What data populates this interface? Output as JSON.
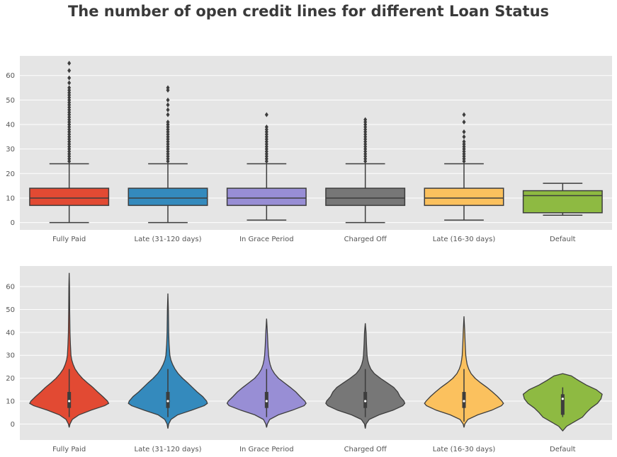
{
  "title": "The number of open credit lines for different Loan Status",
  "colors": {
    "background": "#E5E5E5",
    "grid": "#FFFFFF",
    "line": "#3D3D3D",
    "tick_text": "#555555",
    "palette": [
      "#E24A33",
      "#348ABD",
      "#988ED5",
      "#777777",
      "#FBC15E",
      "#8EBA42"
    ]
  },
  "chart_data": [
    {
      "type": "box",
      "categories": [
        "Fully Paid",
        "Late (31-120 days)",
        "In Grace Period",
        "Charged Off",
        "Late (16-30 days)",
        "Default"
      ],
      "ylim": [
        -3,
        68
      ],
      "yticks": [
        0,
        10,
        20,
        30,
        40,
        50,
        60
      ],
      "grid": true,
      "boxes": [
        {
          "q1": 7,
          "median": 10,
          "q3": 14,
          "whisker_low": 0,
          "whisker_high": 24,
          "outliers": [
            25,
            26,
            27,
            28,
            29,
            30,
            31,
            32,
            33,
            34,
            35,
            36,
            37,
            38,
            39,
            40,
            41,
            42,
            43,
            44,
            45,
            46,
            47,
            48,
            49,
            50,
            51,
            52,
            53,
            54,
            55,
            57,
            59,
            62,
            65
          ]
        },
        {
          "q1": 7,
          "median": 10,
          "q3": 14,
          "whisker_low": 0,
          "whisker_high": 24,
          "outliers": [
            25,
            26,
            27,
            28,
            29,
            30,
            31,
            32,
            33,
            34,
            35,
            36,
            37,
            38,
            39,
            40,
            41,
            44,
            46,
            48,
            50,
            54,
            55
          ]
        },
        {
          "q1": 7,
          "median": 10,
          "q3": 14,
          "whisker_low": 1,
          "whisker_high": 24,
          "outliers": [
            25,
            26,
            27,
            28,
            29,
            30,
            31,
            32,
            33,
            34,
            35,
            36,
            37,
            38,
            39,
            44
          ]
        },
        {
          "q1": 7,
          "median": 10,
          "q3": 14,
          "whisker_low": 0,
          "whisker_high": 24,
          "outliers": [
            25,
            26,
            27,
            28,
            29,
            30,
            31,
            32,
            33,
            34,
            35,
            36,
            37,
            38,
            39,
            40,
            41,
            42
          ]
        },
        {
          "q1": 7,
          "median": 10,
          "q3": 14,
          "whisker_low": 1,
          "whisker_high": 24,
          "outliers": [
            25,
            26,
            27,
            28,
            29,
            30,
            31,
            32,
            33,
            35,
            37,
            41,
            44
          ]
        },
        {
          "q1": 4,
          "median": 11,
          "q3": 13,
          "whisker_low": 3,
          "whisker_high": 16,
          "outliers": []
        }
      ]
    },
    {
      "type": "violin",
      "categories": [
        "Fully Paid",
        "Late (31-120 days)",
        "In Grace Period",
        "Charged Off",
        "Late (16-30 days)",
        "Default"
      ],
      "ylim": [
        -7,
        69
      ],
      "yticks": [
        0,
        10,
        20,
        30,
        40,
        50,
        60
      ],
      "grid": true,
      "violins": [
        {
          "min": -1.5,
          "max": 66,
          "q1": 7,
          "median": 10,
          "q3": 14,
          "whisker_low": 3,
          "whisker_high": 24,
          "profile": [
            [
              -1.5,
              0
            ],
            [
              0,
              0.02
            ],
            [
              2,
              0.08
            ],
            [
              4,
              0.25
            ],
            [
              6,
              0.55
            ],
            [
              8,
              0.9
            ],
            [
              9,
              1.0
            ],
            [
              10,
              0.97
            ],
            [
              12,
              0.85
            ],
            [
              14,
              0.72
            ],
            [
              16,
              0.6
            ],
            [
              18,
              0.46
            ],
            [
              20,
              0.33
            ],
            [
              22,
              0.23
            ],
            [
              24,
              0.15
            ],
            [
              26,
              0.1
            ],
            [
              28,
              0.065
            ],
            [
              30,
              0.045
            ],
            [
              35,
              0.03
            ],
            [
              40,
              0.02
            ],
            [
              50,
              0.012
            ],
            [
              60,
              0.008
            ],
            [
              66,
              0
            ]
          ]
        },
        {
          "min": -2,
          "max": 57,
          "q1": 7,
          "median": 10,
          "q3": 14,
          "whisker_low": 3,
          "whisker_high": 24,
          "profile": [
            [
              -2,
              0
            ],
            [
              0,
              0.02
            ],
            [
              2,
              0.08
            ],
            [
              4,
              0.25
            ],
            [
              6,
              0.6
            ],
            [
              8,
              0.92
            ],
            [
              9,
              1.0
            ],
            [
              10,
              0.98
            ],
            [
              12,
              0.88
            ],
            [
              14,
              0.74
            ],
            [
              16,
              0.62
            ],
            [
              18,
              0.5
            ],
            [
              20,
              0.37
            ],
            [
              22,
              0.26
            ],
            [
              24,
              0.18
            ],
            [
              26,
              0.12
            ],
            [
              28,
              0.075
            ],
            [
              30,
              0.05
            ],
            [
              35,
              0.03
            ],
            [
              40,
              0.02
            ],
            [
              50,
              0.012
            ],
            [
              57,
              0
            ]
          ]
        },
        {
          "min": -1.5,
          "max": 46,
          "q1": 7,
          "median": 10,
          "q3": 14,
          "whisker_low": 3,
          "whisker_high": 24,
          "profile": [
            [
              -1.5,
              0
            ],
            [
              0,
              0.02
            ],
            [
              2,
              0.08
            ],
            [
              4,
              0.3
            ],
            [
              6,
              0.65
            ],
            [
              8,
              0.95
            ],
            [
              9,
              1.0
            ],
            [
              10,
              0.97
            ],
            [
              12,
              0.85
            ],
            [
              14,
              0.74
            ],
            [
              16,
              0.6
            ],
            [
              18,
              0.45
            ],
            [
              20,
              0.3
            ],
            [
              22,
              0.2
            ],
            [
              24,
              0.13
            ],
            [
              26,
              0.09
            ],
            [
              28,
              0.065
            ],
            [
              30,
              0.05
            ],
            [
              34,
              0.035
            ],
            [
              40,
              0.02
            ],
            [
              46,
              0
            ]
          ]
        },
        {
          "min": -2,
          "max": 44,
          "q1": 7,
          "median": 10,
          "q3": 14,
          "whisker_low": 3,
          "whisker_high": 24,
          "profile": [
            [
              -2,
              0
            ],
            [
              0,
              0.02
            ],
            [
              2,
              0.1
            ],
            [
              4,
              0.35
            ],
            [
              6,
              0.7
            ],
            [
              8,
              0.95
            ],
            [
              9,
              1.0
            ],
            [
              10,
              0.98
            ],
            [
              12,
              0.88
            ],
            [
              14,
              0.82
            ],
            [
              16,
              0.72
            ],
            [
              18,
              0.55
            ],
            [
              20,
              0.38
            ],
            [
              22,
              0.23
            ],
            [
              24,
              0.14
            ],
            [
              26,
              0.09
            ],
            [
              28,
              0.06
            ],
            [
              30,
              0.045
            ],
            [
              35,
              0.03
            ],
            [
              40,
              0.02
            ],
            [
              44,
              0
            ]
          ]
        },
        {
          "min": -1.5,
          "max": 47,
          "q1": 7,
          "median": 10,
          "q3": 14,
          "whisker_low": 1,
          "whisker_high": 24,
          "profile": [
            [
              -1.5,
              0
            ],
            [
              0,
              0.02
            ],
            [
              2,
              0.1
            ],
            [
              4,
              0.35
            ],
            [
              6,
              0.7
            ],
            [
              8,
              0.95
            ],
            [
              9,
              1.0
            ],
            [
              10,
              0.96
            ],
            [
              12,
              0.85
            ],
            [
              14,
              0.72
            ],
            [
              16,
              0.58
            ],
            [
              18,
              0.42
            ],
            [
              20,
              0.28
            ],
            [
              22,
              0.18
            ],
            [
              24,
              0.12
            ],
            [
              26,
              0.08
            ],
            [
              28,
              0.06
            ],
            [
              30,
              0.045
            ],
            [
              35,
              0.03
            ],
            [
              40,
              0.02
            ],
            [
              47,
              0
            ]
          ]
        },
        {
          "min": -3,
          "max": 22,
          "q1": 4,
          "median": 11,
          "q3": 13,
          "whisker_low": 3,
          "whisker_high": 16,
          "profile": [
            [
              -3,
              0
            ],
            [
              -1,
              0.1
            ],
            [
              1,
              0.3
            ],
            [
              3,
              0.5
            ],
            [
              5,
              0.6
            ],
            [
              7,
              0.72
            ],
            [
              9,
              0.88
            ],
            [
              11,
              0.97
            ],
            [
              13,
              1.0
            ],
            [
              15,
              0.85
            ],
            [
              17,
              0.6
            ],
            [
              19,
              0.4
            ],
            [
              21,
              0.22
            ],
            [
              22,
              0
            ]
          ]
        }
      ]
    }
  ]
}
